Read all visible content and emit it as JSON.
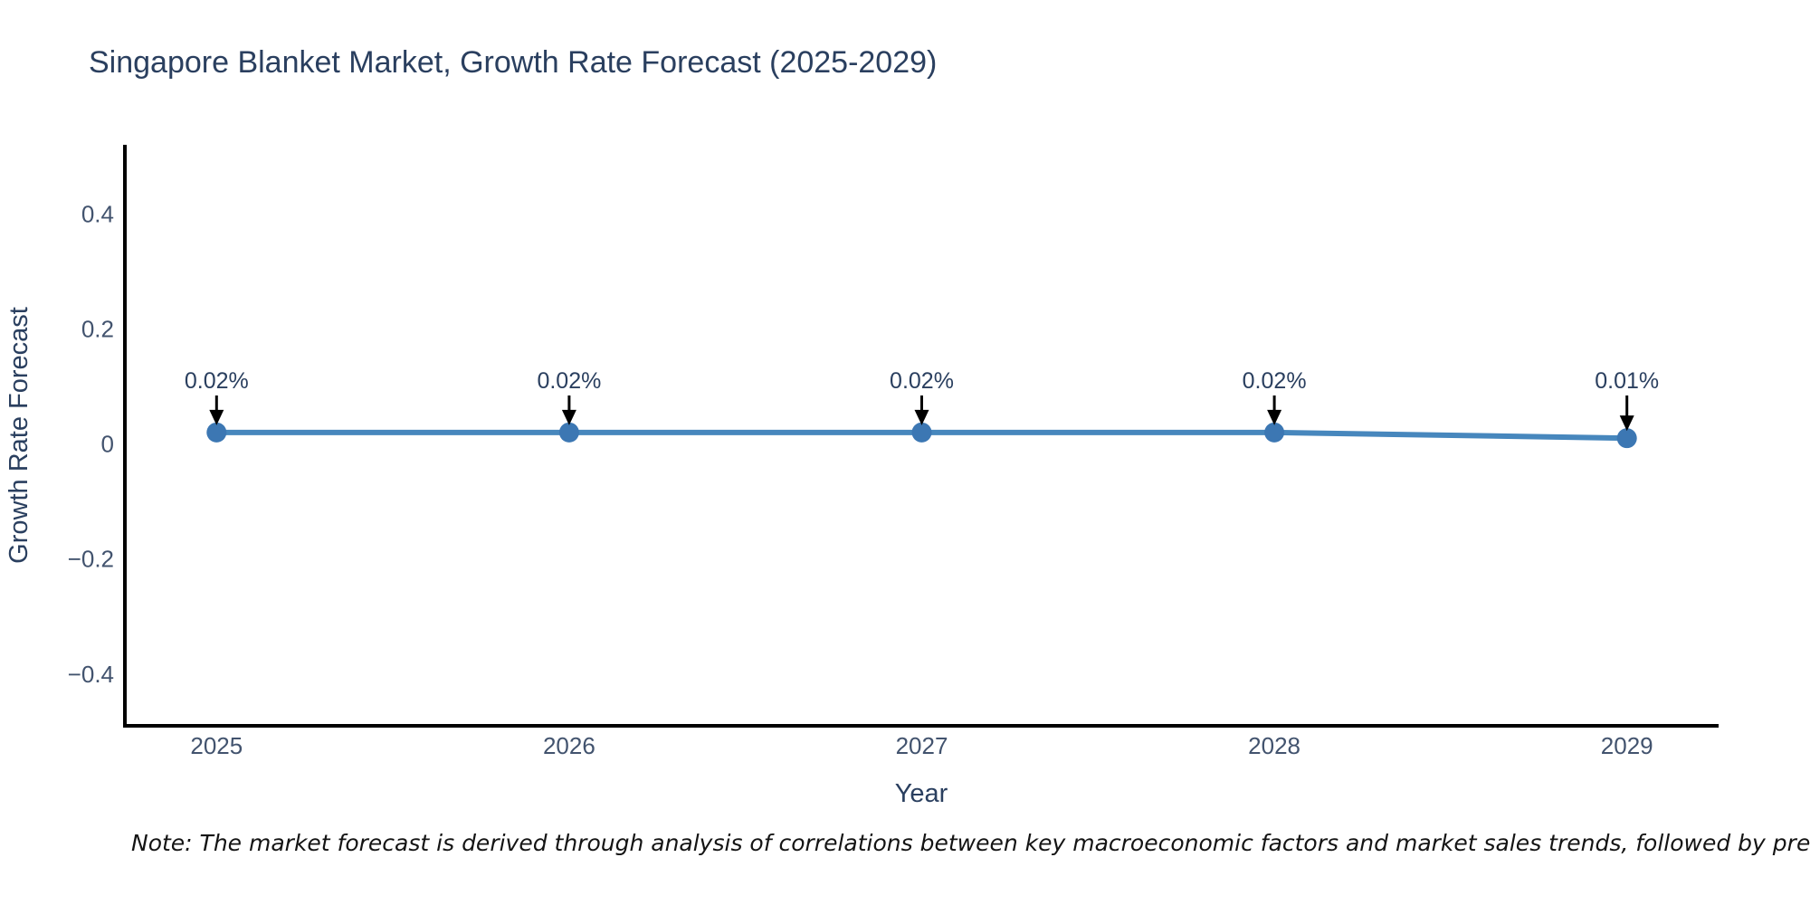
{
  "note": "Note: The market forecast is derived through analysis of correlations between key macroeconomic factors and market sales trends, followed by predictive modeling to project future sa",
  "chart_data": {
    "type": "line",
    "title": "Singapore Blanket Market, Growth Rate Forecast (2025-2029)",
    "xlabel": "Year",
    "ylabel": "Growth Rate Forecast",
    "x": [
      2025,
      2026,
      2027,
      2028,
      2029
    ],
    "values": [
      0.02,
      0.02,
      0.02,
      0.02,
      0.01
    ],
    "point_labels": [
      "0.02%",
      "0.02%",
      "0.02%",
      "0.02%",
      "0.01%"
    ],
    "x_tick_labels": [
      "2025",
      "2026",
      "2027",
      "2028",
      "2029"
    ],
    "yticks": [
      0.4,
      0.2,
      0,
      -0.2,
      -0.4
    ],
    "ytick_labels": [
      "0.4",
      "0.2",
      "0",
      "−0.2",
      "−0.4"
    ],
    "xlim": [
      2024.74,
      2029.26
    ],
    "ylim": [
      -0.49,
      0.52
    ],
    "grid": false,
    "legend": "none",
    "colors": {
      "line": "#4787bd",
      "marker": "#3c77b3",
      "axis": "#000000",
      "title_text": "#2a3f5f",
      "tick_text": "#42536e",
      "arrow": "#000000",
      "note_text": "#141414"
    }
  }
}
